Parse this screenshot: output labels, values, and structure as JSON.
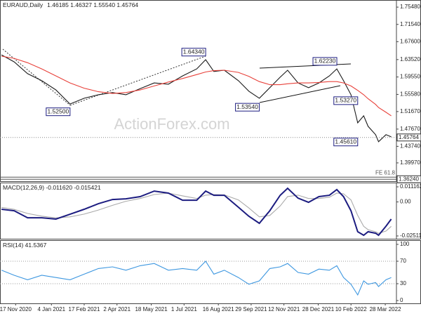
{
  "chart_data": [
    {
      "type": "line",
      "title": "EURAUD,Daily",
      "ohlc_text": "1.46185 1.46327 1.55540 1.45764",
      "watermark": "ActionForex.com",
      "x": [
        "29 Oct 2020",
        "15 Nov 2020",
        "3 Dec 2020",
        "22 Dec 2020",
        "10 Jan 2021",
        "29 Jan 2021",
        "17 Feb 2021",
        "8 Mar 2021",
        "27 Mar 2021",
        "14 Apr 2021",
        "3 May 2021",
        "22 May 2021",
        "10 Jun 2021",
        "29 Jun 2021",
        "18 Jul 2021",
        "30 Jul 2021",
        "10 Aug 2021",
        "24 Aug 2021",
        "12 Sep 2021",
        "26 Sep 2021",
        "10 Oct 2021",
        "24 Oct 2021",
        "7 Nov 2021",
        "17 Nov 2021",
        "1 Dec 2021",
        "15 Dec 2021",
        "29 Dec 2021",
        "12 Jan 2022",
        "22 Jan 2022",
        "31 Jan 2022",
        "10 Feb 2022",
        "19 Feb 2022",
        "27 Feb 2022",
        "5 Mar 2022",
        "15 Mar 2022",
        "19 Mar 2022",
        "29 Mar 2022",
        "5 Apr 2022"
      ],
      "xlim": [
        "27 Oct 2020",
        "12 Apr 2022"
      ],
      "series": [
        {
          "color": "#1a1a1a",
          "values": [
            1.646,
            1.63,
            1.603,
            1.587,
            1.566,
            1.534,
            1.547,
            1.555,
            1.56,
            1.555,
            1.569,
            1.582,
            1.579,
            1.598,
            1.614,
            1.635,
            1.608,
            1.611,
            1.587,
            1.563,
            1.547,
            1.571,
            1.595,
            1.611,
            1.582,
            1.571,
            1.582,
            1.598,
            1.614,
            1.587,
            1.555,
            1.491,
            1.507,
            1.483,
            1.464,
            1.448,
            1.464,
            1.459
          ]
        },
        {
          "color": "#e8413a",
          "values": [
            1.643,
            1.638,
            1.628,
            1.614,
            1.598,
            1.582,
            1.57,
            1.562,
            1.558,
            1.56,
            1.566,
            1.575,
            1.584,
            1.592,
            1.601,
            1.607,
            1.61,
            1.611,
            1.606,
            1.597,
            1.585,
            1.578,
            1.578,
            1.58,
            1.582,
            1.582,
            1.583,
            1.585,
            1.585,
            1.582,
            1.575,
            1.565,
            1.555,
            1.546,
            1.533,
            1.526,
            1.515,
            1.507
          ]
        }
      ],
      "ylim": [
        1.358,
        1.771
      ],
      "yticks": [
        {
          "value": 1.7548,
          "label": "1.75480"
        },
        {
          "value": 1.7154,
          "label": "1.71540"
        },
        {
          "value": 1.676,
          "label": "1.67600"
        },
        {
          "value": 1.6352,
          "label": "1.63520"
        },
        {
          "value": 1.5955,
          "label": "1.59550"
        },
        {
          "value": 1.5558,
          "label": "1.55580"
        },
        {
          "value": 1.5167,
          "label": "1.51670"
        },
        {
          "value": 1.4767,
          "label": "1.47670"
        },
        {
          "value": 1.4374,
          "label": "1.43740"
        },
        {
          "value": 1.3997,
          "label": "1.39970"
        }
      ],
      "annotations": [
        {
          "value": 1.6434,
          "label": "1.64340",
          "x": "30 Jul 2021"
        },
        {
          "value": 1.525,
          "label": "1.52500",
          "x": "29 Jan 2021"
        },
        {
          "value": 1.6223,
          "label": "1.62230",
          "x": "22 Jan 2022"
        },
        {
          "value": 1.5354,
          "label": "1.53540",
          "x": "10 Oct 2021"
        },
        {
          "value": 1.5327,
          "label": "1.53270",
          "x": "19 Feb 2022"
        },
        {
          "value": 1.4561,
          "label": "1.45610",
          "x": "19 Feb 2022"
        }
      ],
      "last_price": {
        "value": 1.45764,
        "label": "1.45764"
      },
      "fe_level": {
        "value": 1.3624,
        "label": "1.36240",
        "text": "FE 61.8"
      }
    },
    {
      "type": "line",
      "title": "MACD(12,26,9) -0.011620 -0.015421",
      "x": [
        "29 Oct 2020",
        "15 Nov 2020",
        "3 Dec 2020",
        "22 Dec 2020",
        "10 Jan 2021",
        "29 Jan 2021",
        "17 Feb 2021",
        "8 Mar 2021",
        "27 Mar 2021",
        "14 Apr 2021",
        "3 May 2021",
        "22 May 2021",
        "10 Jun 2021",
        "29 Jun 2021",
        "18 Jul 2021",
        "30 Jul 2021",
        "10 Aug 2021",
        "24 Aug 2021",
        "12 Sep 2021",
        "26 Sep 2021",
        "10 Oct 2021",
        "24 Oct 2021",
        "7 Nov 2021",
        "17 Nov 2021",
        "1 Dec 2021",
        "15 Dec 2021",
        "29 Dec 2021",
        "12 Jan 2022",
        "22 Jan 2022",
        "31 Jan 2022",
        "10 Feb 2022",
        "19 Feb 2022",
        "27 Feb 2022",
        "5 Mar 2022",
        "15 Mar 2022",
        "19 Mar 2022",
        "29 Mar 2022",
        "5 Apr 2022"
      ],
      "xlim": [
        "27 Oct 2020",
        "12 Apr 2022"
      ],
      "series": [
        {
          "color": "#aaaaaa",
          "values": [
            -0.004,
            -0.0055,
            -0.0085,
            -0.0105,
            -0.0118,
            -0.011,
            -0.009,
            -0.006,
            -0.0025,
            0.0005,
            0.0025,
            0.0055,
            0.0065,
            0.0045,
            0.0025,
            0.005,
            0.0055,
            0.0052,
            0.0015,
            -0.0045,
            -0.011,
            -0.01,
            -0.003,
            0.004,
            0.005,
            0.0025,
            0.0025,
            0.0035,
            0.0065,
            0.006,
            0.0015,
            -0.01,
            -0.018,
            -0.0205,
            -0.022,
            -0.0232,
            -0.0215,
            -0.018
          ]
        },
        {
          "color": "#1c1c80",
          "values": [
            -0.0054,
            -0.0065,
            -0.0117,
            -0.0117,
            -0.0127,
            -0.0091,
            -0.0054,
            -0.0013,
            0.0018,
            0.0023,
            0.0039,
            0.008,
            0.0065,
            0.0013,
            0.0013,
            0.008,
            0.0049,
            0.0049,
            -0.0039,
            -0.0106,
            -0.0158,
            -0.0065,
            0.0049,
            0.0101,
            0.0028,
            -0.0003,
            0.0039,
            0.0049,
            0.0091,
            0.0039,
            -0.0065,
            -0.022,
            -0.0246,
            -0.022,
            -0.0231,
            -0.0246,
            -0.0179,
            -0.0127
          ]
        }
      ],
      "ylim": [
        -0.0272,
        0.0143
      ],
      "yticks": [
        0.011162,
        {
          "value": 0,
          "label": "0.00"
        },
        -0.025117
      ]
    },
    {
      "type": "line",
      "title": "RSI(14) 41.5367",
      "x": [
        "29 Oct 2020",
        "15 Nov 2020",
        "3 Dec 2020",
        "22 Dec 2020",
        "10 Jan 2021",
        "29 Jan 2021",
        "17 Feb 2021",
        "8 Mar 2021",
        "27 Mar 2021",
        "14 Apr 2021",
        "3 May 2021",
        "22 May 2021",
        "10 Jun 2021",
        "29 Jun 2021",
        "18 Jul 2021",
        "30 Jul 2021",
        "10 Aug 2021",
        "24 Aug 2021",
        "12 Sep 2021",
        "26 Sep 2021",
        "10 Oct 2021",
        "24 Oct 2021",
        "7 Nov 2021",
        "17 Nov 2021",
        "1 Dec 2021",
        "15 Dec 2021",
        "29 Dec 2021",
        "12 Jan 2022",
        "22 Jan 2022",
        "31 Jan 2022",
        "10 Feb 2022",
        "19 Feb 2022",
        "27 Feb 2022",
        "5 Mar 2022",
        "15 Mar 2022",
        "19 Mar 2022",
        "29 Mar 2022",
        "5 Apr 2022"
      ],
      "xlim": [
        "27 Oct 2020",
        "12 Apr 2022"
      ],
      "series": [
        {
          "color": "#3d97e0",
          "values": [
            54,
            45,
            37,
            45,
            41,
            37,
            47,
            57,
            60,
            54,
            62,
            66,
            54,
            57,
            54,
            70,
            47,
            54,
            41,
            29,
            35,
            57,
            60,
            66,
            50,
            47,
            56,
            54,
            62,
            41,
            29,
            10,
            35,
            29,
            32,
            25,
            37,
            41
          ]
        }
      ],
      "ylim": [
        -5,
        107.5
      ],
      "yticks": [
        100,
        70,
        30,
        0
      ],
      "grid_ticks": [
        70,
        30
      ],
      "xticks": [
        "17 Nov 2020",
        "4 Jan 2021",
        "17 Feb 2021",
        "2 Apr 2021",
        "18 May 2021",
        "1 Jul 2021",
        "16 Aug 2021",
        "29 Sep 2021",
        "12 Nov 2021",
        "28 Dec 2021",
        "10 Feb 2022",
        "28 Mar 2022"
      ]
    }
  ]
}
